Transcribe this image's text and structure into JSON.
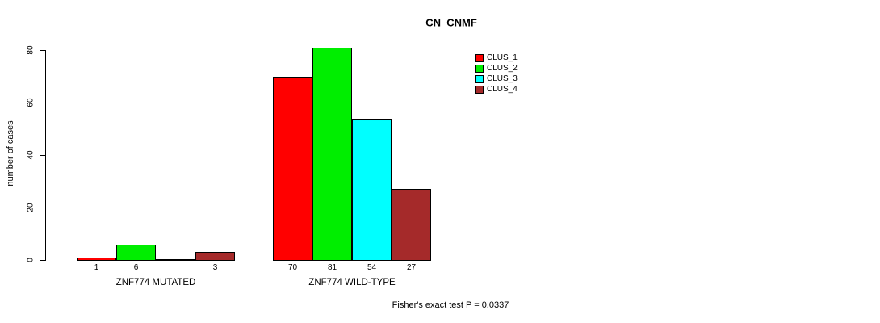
{
  "chart_data": {
    "type": "bar",
    "title": "CN_CNMF",
    "xlabel": "",
    "ylabel": "number of cases",
    "ylim": [
      0,
      80
    ],
    "yticks": [
      0,
      20,
      40,
      60,
      80
    ],
    "grid": false,
    "legend_position": "top-right",
    "series": [
      {
        "name": "CLUS_1",
        "color": "#FF0000"
      },
      {
        "name": "CLUS_2",
        "color": "#00EE00"
      },
      {
        "name": "CLUS_3",
        "color": "#00FFFF"
      },
      {
        "name": "CLUS_4",
        "color": "#A52A2A"
      }
    ],
    "groups": [
      {
        "label": "ZNF774 MUTATED",
        "values": [
          1,
          6,
          0,
          3
        ],
        "bar_labels": [
          "1",
          "6",
          "",
          "3"
        ]
      },
      {
        "label": "ZNF774 WILD-TYPE",
        "values": [
          70,
          81,
          54,
          27
        ],
        "bar_labels": [
          "70",
          "81",
          "54",
          "27"
        ]
      }
    ],
    "annotation": "Fisher's exact test P = 0.0337"
  }
}
